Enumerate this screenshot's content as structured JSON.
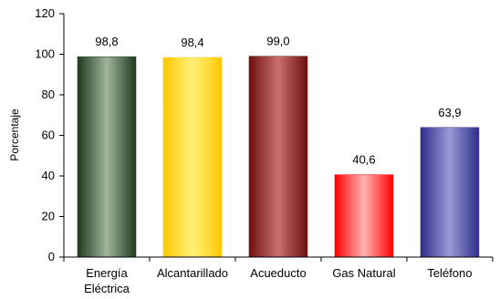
{
  "chart_data": {
    "type": "bar",
    "categories": [
      [
        "Energía",
        "Eléctrica"
      ],
      [
        "Alcantarillado"
      ],
      [
        "Acueducto"
      ],
      [
        "Gas Natural"
      ],
      [
        "Teléfono"
      ]
    ],
    "values": [
      98.8,
      98.4,
      99.0,
      40.6,
      63.9
    ],
    "value_labels": [
      "98,8",
      "98,4",
      "99,0",
      "40,6",
      "63,9"
    ],
    "ylabel": "Porcentaje",
    "xlabel": "",
    "ylim": [
      0,
      120
    ],
    "yticks": [
      0,
      20,
      40,
      60,
      80,
      100,
      120
    ],
    "grid": false,
    "legend": "none",
    "bar_colors": [
      {
        "edge": "#1f3a1f",
        "mid": "#9fb59a"
      },
      {
        "edge": "#ffc800",
        "mid": "#fff07a"
      },
      {
        "edge": "#6e0f0f",
        "mid": "#c87070"
      },
      {
        "edge": "#ff0000",
        "mid": "#ffb3b3"
      },
      {
        "edge": "#2e2e8c",
        "mid": "#9a9ad6"
      }
    ]
  }
}
